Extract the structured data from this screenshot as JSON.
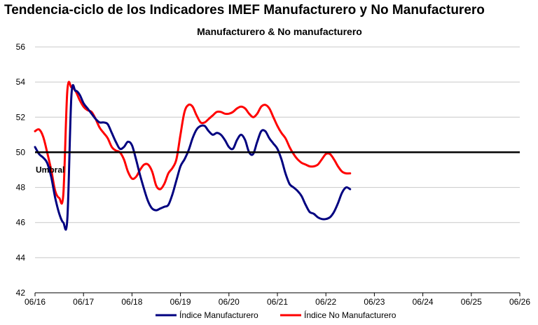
{
  "chart_data": {
    "type": "line",
    "title": "Tendencia-ciclo de los Indicadores IMEF Manufacturero y No Manufacturero",
    "subtitle": "Manufacturero & No manufacturero",
    "xlabel": "",
    "ylabel": "",
    "ylim": [
      42,
      56
    ],
    "yticks": [
      42,
      44,
      46,
      48,
      50,
      52,
      54,
      56
    ],
    "xlim": [
      "2016-06",
      "2026-06"
    ],
    "xticks": [
      "06/16",
      "06/17",
      "06/18",
      "06/19",
      "06/20",
      "06/21",
      "06/22",
      "06/23",
      "06/24",
      "06/25",
      "06/26"
    ],
    "grid": true,
    "legend_position": "bottom",
    "threshold": {
      "value": 50,
      "label": "Umbral",
      "color": "#000000"
    },
    "series": [
      {
        "name": "Índice Manufacturero",
        "color": "#000080",
        "points": [
          [
            "2016-06",
            50.3
          ],
          [
            "2016-07",
            49.9
          ],
          [
            "2016-08",
            49.7
          ],
          [
            "2016-09",
            49.4
          ],
          [
            "2016-10",
            48.6
          ],
          [
            "2016-11",
            47.4
          ],
          [
            "2016-12",
            46.5
          ],
          [
            "2017-01",
            46.0
          ],
          [
            "2017-02",
            46.2
          ],
          [
            "2017-03",
            53.2
          ],
          [
            "2017-04",
            53.5
          ],
          [
            "2017-05",
            53.3
          ],
          [
            "2017-06",
            52.8
          ],
          [
            "2017-07",
            52.5
          ],
          [
            "2017-08",
            52.2
          ],
          [
            "2017-09",
            51.9
          ],
          [
            "2017-10",
            51.7
          ],
          [
            "2017-11",
            51.7
          ],
          [
            "2017-12",
            51.6
          ],
          [
            "2018-01",
            51.1
          ],
          [
            "2018-02",
            50.6
          ],
          [
            "2018-03",
            50.2
          ],
          [
            "2018-04",
            50.3
          ],
          [
            "2018-05",
            50.6
          ],
          [
            "2018-06",
            50.4
          ],
          [
            "2018-07",
            49.6
          ],
          [
            "2018-08",
            48.7
          ],
          [
            "2018-09",
            47.9
          ],
          [
            "2018-10",
            47.2
          ],
          [
            "2018-11",
            46.8
          ],
          [
            "2018-12",
            46.7
          ],
          [
            "2019-01",
            46.8
          ],
          [
            "2019-02",
            46.9
          ],
          [
            "2019-03",
            47.0
          ],
          [
            "2019-04",
            47.6
          ],
          [
            "2019-05",
            48.4
          ],
          [
            "2019-06",
            49.2
          ],
          [
            "2019-07",
            49.6
          ],
          [
            "2019-08",
            50.1
          ],
          [
            "2019-09",
            50.8
          ],
          [
            "2019-10",
            51.3
          ],
          [
            "2019-11",
            51.5
          ],
          [
            "2019-12",
            51.5
          ],
          [
            "2020-01",
            51.2
          ],
          [
            "2020-02",
            51.0
          ],
          [
            "2020-03",
            51.1
          ],
          [
            "2020-04",
            51.0
          ],
          [
            "2020-05",
            50.7
          ],
          [
            "2020-06",
            50.3
          ],
          [
            "2020-07",
            50.2
          ],
          [
            "2020-08",
            50.7
          ],
          [
            "2020-09",
            51.0
          ],
          [
            "2020-10",
            50.7
          ],
          [
            "2020-11",
            50.0
          ],
          [
            "2020-12",
            49.9
          ],
          [
            "2021-01",
            50.6
          ],
          [
            "2021-02",
            51.2
          ],
          [
            "2021-03",
            51.2
          ],
          [
            "2021-04",
            50.8
          ],
          [
            "2021-05",
            50.5
          ],
          [
            "2021-06",
            50.2
          ],
          [
            "2021-07",
            49.6
          ],
          [
            "2021-08",
            48.8
          ],
          [
            "2021-09",
            48.2
          ],
          [
            "2021-10",
            48.0
          ],
          [
            "2021-11",
            47.8
          ],
          [
            "2021-12",
            47.5
          ],
          [
            "2022-01",
            47.0
          ],
          [
            "2022-02",
            46.6
          ],
          [
            "2022-03",
            46.5
          ],
          [
            "2022-04",
            46.3
          ],
          [
            "2022-05",
            46.2
          ],
          [
            "2022-06",
            46.2
          ],
          [
            "2022-07",
            46.3
          ],
          [
            "2022-08",
            46.6
          ],
          [
            "2022-09",
            47.1
          ],
          [
            "2022-10",
            47.7
          ],
          [
            "2022-11",
            48.0
          ],
          [
            "2022-12",
            47.9
          ]
        ]
      },
      {
        "name": "Índice No Manufacturero",
        "color": "#ff0000",
        "points": [
          [
            "2016-06",
            51.2
          ],
          [
            "2016-07",
            51.3
          ],
          [
            "2016-08",
            50.9
          ],
          [
            "2016-09",
            50.0
          ],
          [
            "2016-10",
            49.0
          ],
          [
            "2016-11",
            47.8
          ],
          [
            "2016-12",
            47.4
          ],
          [
            "2017-01",
            47.6
          ],
          [
            "2017-02",
            53.5
          ],
          [
            "2017-03",
            53.7
          ],
          [
            "2017-04",
            53.5
          ],
          [
            "2017-05",
            53.0
          ],
          [
            "2017-06",
            52.6
          ],
          [
            "2017-07",
            52.4
          ],
          [
            "2017-08",
            52.3
          ],
          [
            "2017-09",
            51.9
          ],
          [
            "2017-10",
            51.4
          ],
          [
            "2017-11",
            51.1
          ],
          [
            "2017-12",
            50.8
          ],
          [
            "2018-01",
            50.3
          ],
          [
            "2018-02",
            50.1
          ],
          [
            "2018-03",
            50.0
          ],
          [
            "2018-04",
            49.6
          ],
          [
            "2018-05",
            48.9
          ],
          [
            "2018-06",
            48.5
          ],
          [
            "2018-07",
            48.6
          ],
          [
            "2018-08",
            49.0
          ],
          [
            "2018-09",
            49.3
          ],
          [
            "2018-10",
            49.3
          ],
          [
            "2018-11",
            48.9
          ],
          [
            "2018-12",
            48.1
          ],
          [
            "2019-01",
            47.9
          ],
          [
            "2019-02",
            48.2
          ],
          [
            "2019-03",
            48.8
          ],
          [
            "2019-04",
            49.1
          ],
          [
            "2019-05",
            49.6
          ],
          [
            "2019-06",
            51.0
          ],
          [
            "2019-07",
            52.3
          ],
          [
            "2019-08",
            52.7
          ],
          [
            "2019-09",
            52.6
          ],
          [
            "2019-10",
            52.1
          ],
          [
            "2019-11",
            51.7
          ],
          [
            "2019-12",
            51.7
          ],
          [
            "2020-01",
            51.9
          ],
          [
            "2020-02",
            52.1
          ],
          [
            "2020-03",
            52.3
          ],
          [
            "2020-04",
            52.3
          ],
          [
            "2020-05",
            52.2
          ],
          [
            "2020-06",
            52.2
          ],
          [
            "2020-07",
            52.3
          ],
          [
            "2020-08",
            52.5
          ],
          [
            "2020-09",
            52.6
          ],
          [
            "2020-10",
            52.5
          ],
          [
            "2020-11",
            52.2
          ],
          [
            "2020-12",
            52.0
          ],
          [
            "2021-01",
            52.2
          ],
          [
            "2021-02",
            52.6
          ],
          [
            "2021-03",
            52.7
          ],
          [
            "2021-04",
            52.5
          ],
          [
            "2021-05",
            52.0
          ],
          [
            "2021-06",
            51.5
          ],
          [
            "2021-07",
            51.1
          ],
          [
            "2021-08",
            50.8
          ],
          [
            "2021-09",
            50.3
          ],
          [
            "2021-10",
            49.9
          ],
          [
            "2021-11",
            49.6
          ],
          [
            "2021-12",
            49.4
          ],
          [
            "2022-01",
            49.3
          ],
          [
            "2022-02",
            49.2
          ],
          [
            "2022-03",
            49.2
          ],
          [
            "2022-04",
            49.3
          ],
          [
            "2022-05",
            49.6
          ],
          [
            "2022-06",
            49.9
          ],
          [
            "2022-07",
            49.9
          ],
          [
            "2022-08",
            49.6
          ],
          [
            "2022-09",
            49.2
          ],
          [
            "2022-10",
            48.9
          ],
          [
            "2022-11",
            48.8
          ],
          [
            "2022-12",
            48.8
          ]
        ]
      }
    ]
  }
}
